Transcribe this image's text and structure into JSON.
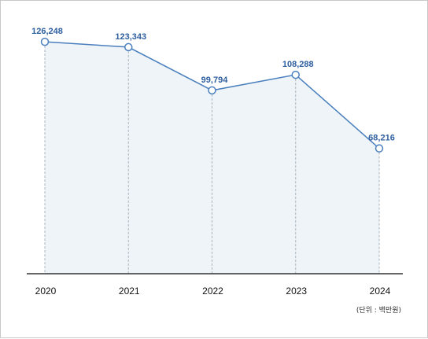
{
  "chart_data": {
    "type": "area",
    "categories": [
      "2020",
      "2021",
      "2022",
      "2023",
      "2024"
    ],
    "values": [
      126248,
      123343,
      99794,
      108288,
      68216
    ],
    "value_labels": [
      "126,248",
      "123,343",
      "99,794",
      "108,288",
      "68,216"
    ],
    "unit_note": "(단위 : 백만원)",
    "ylim": [
      0,
      140000
    ],
    "grid": false,
    "colors": {
      "line": "#4a7fbd",
      "fill": "#eef4f8",
      "label": "#2e5f9e",
      "dropline": "#a8b3bd",
      "axis": "#333333"
    }
  }
}
